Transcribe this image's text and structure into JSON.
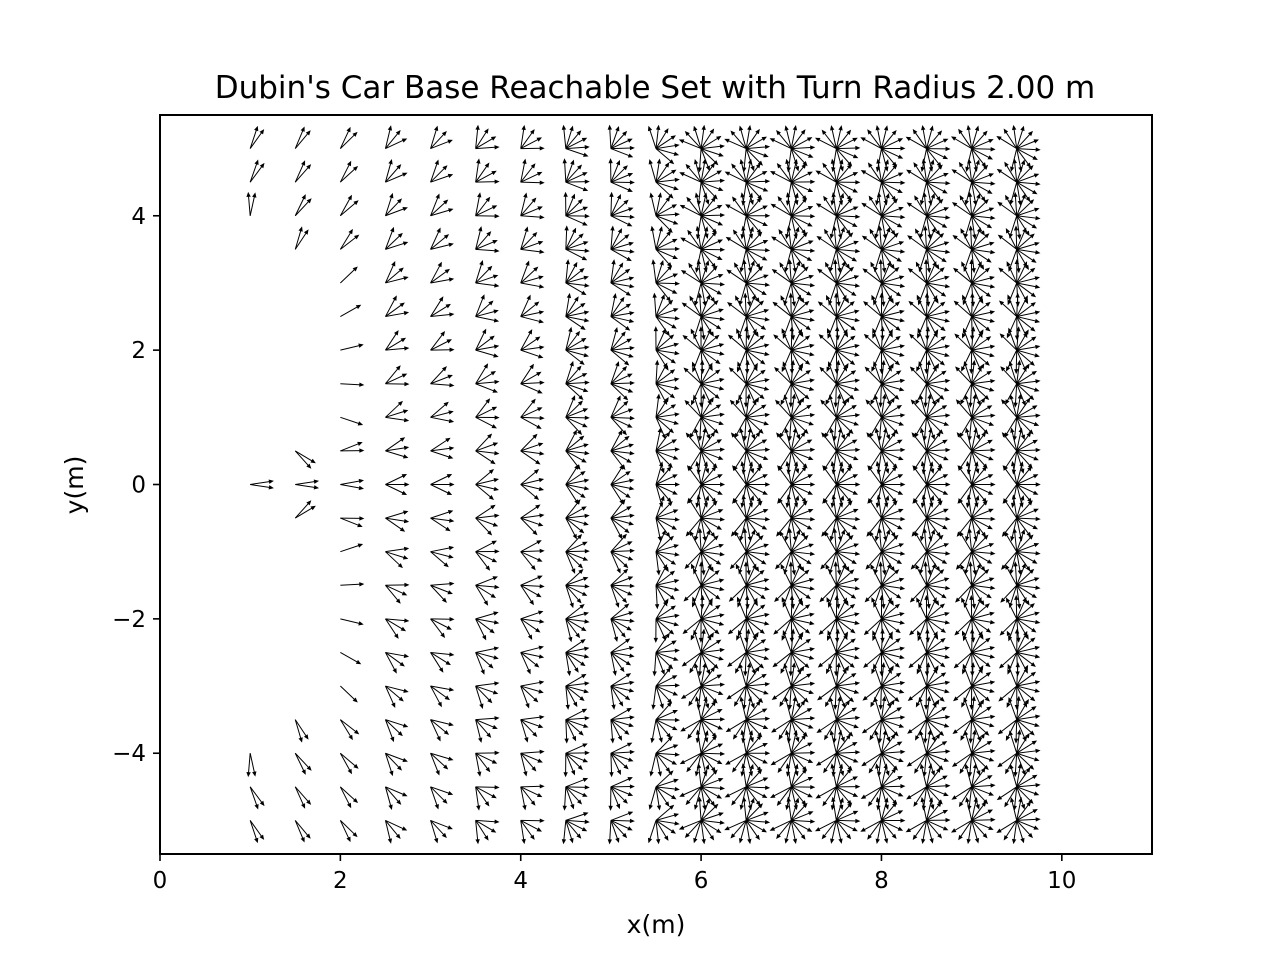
{
  "chart_data": {
    "type": "quiver",
    "title": "Dubin's Car Base Reachable Set with Turn Radius 2.00 m",
    "xlabel": "x(m)",
    "ylabel": "y(m)",
    "xlim": [
      0,
      11
    ],
    "ylim": [
      -5.5,
      5.5
    ],
    "xticks": [
      0,
      2,
      4,
      6,
      8,
      10
    ],
    "xtick_labels": [
      "0",
      "2",
      "4",
      "6",
      "8",
      "10"
    ],
    "yticks": [
      -4,
      -2,
      0,
      2,
      4
    ],
    "ytick_labels": [
      "−4",
      "−2",
      "0",
      "2",
      "4"
    ],
    "grid": false,
    "legend": "none",
    "turn_radius": 2.0,
    "grid_x_values": [
      1,
      1.5,
      2,
      2.5,
      3,
      3.5,
      4,
      4.5,
      5,
      5.5,
      6,
      6.5,
      7,
      7.5,
      8,
      8.5,
      9,
      9.5
    ],
    "grid_y_step": 0.5,
    "grid_y_range": [
      -5,
      5
    ],
    "arrow_color": "#000000"
  }
}
